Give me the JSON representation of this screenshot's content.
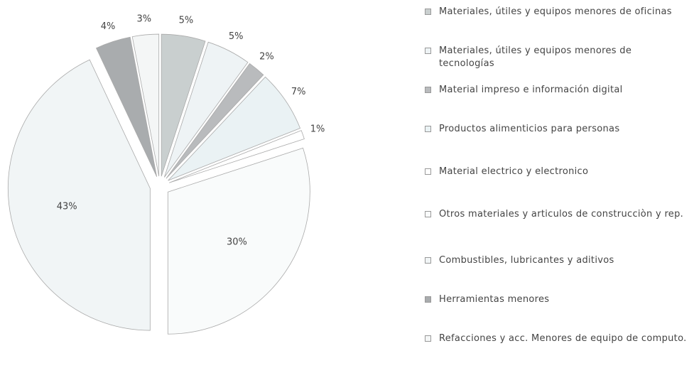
{
  "chart_data": {
    "type": "pie",
    "categories": [
      "Materiales, útiles y equipos menores de oficinas",
      "Materiales, útiles y equipos menores de tecnologías",
      "Material impreso e información digital",
      "Productos alimenticios para personas",
      "Material electrico y electronico",
      "Otros materiales y articulos de construcciòn y rep.",
      "Combustibles, lubricantes y aditivos",
      "Herramientas menores",
      "Refacciones y acc. Menores de equipo de computo."
    ],
    "values": [
      5,
      5,
      2,
      7,
      1,
      30,
      43,
      4,
      3
    ],
    "value_labels": [
      "5%",
      "5%",
      "2%",
      "7%",
      "1%",
      "30%",
      "43%",
      "4%",
      "3%"
    ],
    "colors": [
      "#c9cfcf",
      "#eef3f5",
      "#b9bbbd",
      "#eaf2f4",
      "#ffffff",
      "#f9fbfb",
      "#f1f5f6",
      "#a9acae",
      "#f4f6f6"
    ],
    "legend": "right"
  }
}
